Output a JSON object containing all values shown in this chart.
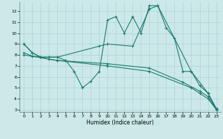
{
  "xlabel": "Humidex (Indice chaleur)",
  "xlim": [
    -0.5,
    23.5
  ],
  "ylim": [
    2.8,
    12.8
  ],
  "yticks": [
    3,
    4,
    5,
    6,
    7,
    8,
    9,
    10,
    11,
    12
  ],
  "xticks": [
    0,
    1,
    2,
    3,
    4,
    5,
    6,
    7,
    8,
    9,
    10,
    11,
    12,
    13,
    14,
    15,
    16,
    17,
    18,
    19,
    20,
    21,
    22,
    23
  ],
  "bg_color": "#cce8e8",
  "line_color": "#1a7a6e",
  "grid_color": "#aad4d4",
  "line1_x": [
    0,
    1,
    2,
    3,
    4,
    5,
    6,
    7,
    8,
    9,
    10,
    11,
    12,
    13,
    14,
    15,
    16,
    17,
    18,
    19,
    20,
    21,
    22,
    23
  ],
  "line1_y": [
    9.0,
    8.2,
    7.8,
    7.8,
    7.8,
    7.5,
    6.5,
    5.0,
    5.6,
    6.5,
    11.2,
    11.5,
    10.0,
    11.5,
    10.0,
    12.5,
    12.5,
    10.5,
    9.5,
    6.5,
    6.5,
    5.2,
    4.5,
    3.1
  ],
  "line2_x": [
    0,
    1,
    2,
    3,
    4,
    9,
    10,
    13,
    15,
    16,
    20,
    22,
    23
  ],
  "line2_y": [
    9.0,
    8.2,
    7.8,
    7.8,
    7.8,
    8.8,
    9.0,
    8.8,
    12.2,
    12.5,
    6.5,
    4.5,
    3.0
  ],
  "line3_x": [
    0,
    1,
    2,
    3,
    4,
    10,
    15,
    19,
    21,
    22,
    23
  ],
  "line3_y": [
    8.2,
    7.9,
    7.8,
    7.6,
    7.5,
    7.2,
    6.8,
    5.5,
    4.7,
    4.2,
    3.0
  ],
  "line4_x": [
    0,
    4,
    10,
    15,
    20,
    21,
    22,
    23
  ],
  "line4_y": [
    8.0,
    7.5,
    7.0,
    6.5,
    5.0,
    4.5,
    4.0,
    3.0
  ]
}
